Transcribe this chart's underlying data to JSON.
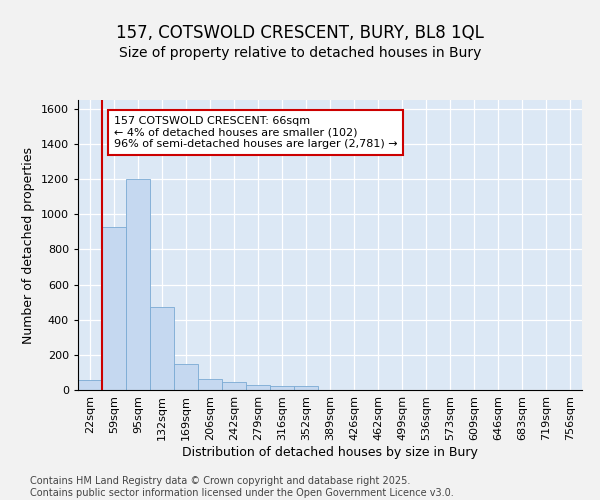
{
  "title1": "157, COTSWOLD CRESCENT, BURY, BL8 1QL",
  "title2": "Size of property relative to detached houses in Bury",
  "xlabel": "Distribution of detached houses by size in Bury",
  "ylabel": "Number of detached properties",
  "bins": [
    "22sqm",
    "59sqm",
    "95sqm",
    "132sqm",
    "169sqm",
    "206sqm",
    "242sqm",
    "279sqm",
    "316sqm",
    "352sqm",
    "389sqm",
    "426sqm",
    "462sqm",
    "499sqm",
    "536sqm",
    "573sqm",
    "609sqm",
    "646sqm",
    "683sqm",
    "719sqm",
    "756sqm"
  ],
  "values": [
    55,
    930,
    1200,
    470,
    150,
    60,
    45,
    30,
    20,
    20,
    0,
    0,
    0,
    0,
    0,
    0,
    0,
    0,
    0,
    0,
    0
  ],
  "bar_color": "#c5d8f0",
  "bar_edge_color": "#7aaad4",
  "vline_color": "#cc0000",
  "vline_index": 1,
  "annotation_text": "157 COTSWOLD CRESCENT: 66sqm\n← 4% of detached houses are smaller (102)\n96% of semi-detached houses are larger (2,781) →",
  "annotation_box_edgecolor": "#cc0000",
  "annotation_box_facecolor": "#ffffff",
  "ylim": [
    0,
    1650
  ],
  "yticks": [
    0,
    200,
    400,
    600,
    800,
    1000,
    1200,
    1400,
    1600
  ],
  "plot_bg_color": "#dce8f5",
  "fig_bg_color": "#f2f2f2",
  "footer_text": "Contains HM Land Registry data © Crown copyright and database right 2025.\nContains public sector information licensed under the Open Government Licence v3.0.",
  "title1_fontsize": 12,
  "title2_fontsize": 10,
  "axis_label_fontsize": 9,
  "tick_fontsize": 8,
  "ann_fontsize": 8,
  "footer_fontsize": 7
}
